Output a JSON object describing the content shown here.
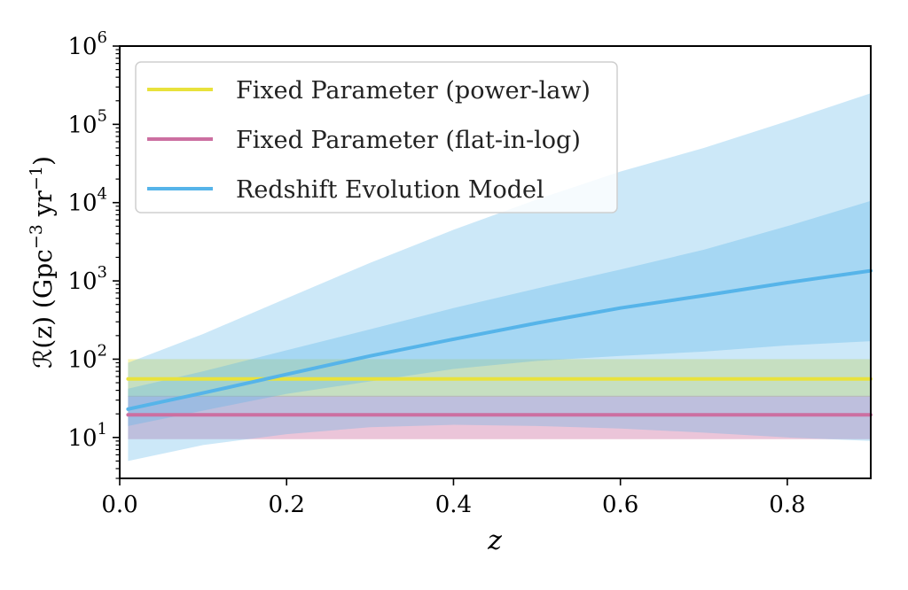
{
  "chart_data": {
    "type": "line",
    "xlabel": "z",
    "ylabel": {
      "main": "ℛ(z) (Gpc",
      "exp1": "−3",
      "mid": " yr",
      "exp2": "−1",
      "end": ")"
    },
    "xlim": [
      0.0,
      0.9
    ],
    "ylim": [
      3,
      1000000
    ],
    "yscale": "log",
    "x_ticks": [
      {
        "value": 0.0,
        "label": "0.0"
      },
      {
        "value": 0.2,
        "label": "0.2"
      },
      {
        "value": 0.4,
        "label": "0.4"
      },
      {
        "value": 0.6,
        "label": "0.6"
      },
      {
        "value": 0.8,
        "label": "0.8"
      }
    ],
    "y_ticks": [
      {
        "value": 10,
        "base": "10",
        "exp": "1"
      },
      {
        "value": 100,
        "base": "10",
        "exp": "2"
      },
      {
        "value": 1000,
        "base": "10",
        "exp": "3"
      },
      {
        "value": 10000,
        "base": "10",
        "exp": "4"
      },
      {
        "value": 100000,
        "base": "10",
        "exp": "5"
      },
      {
        "value": 1000000,
        "base": "10",
        "exp": "6"
      }
    ],
    "grid": false,
    "legend_position": "top-left",
    "series": [
      {
        "name": "Fixed Parameter (power-law)",
        "color": "#e8e23c",
        "x": [
          0.01,
          0.9
        ],
        "median": [
          56,
          56
        ],
        "band_outer": {
          "lower": [
            33,
            33
          ],
          "upper": [
            100,
            100
          ]
        },
        "band_inner": null
      },
      {
        "name": "Fixed Parameter (flat-in-log)",
        "color": "#cc6fa1",
        "x": [
          0.01,
          0.9
        ],
        "median": [
          19.5,
          19.5
        ],
        "band_outer": {
          "lower": [
            9.5,
            9.5
          ],
          "upper": [
            34,
            34
          ]
        },
        "band_inner": null
      },
      {
        "name": "Redshift Evolution Model",
        "color": "#56b4e9",
        "x": [
          0.01,
          0.1,
          0.2,
          0.3,
          0.4,
          0.5,
          0.6,
          0.7,
          0.8,
          0.9
        ],
        "median": [
          23,
          37,
          64,
          110,
          180,
          290,
          450,
          650,
          950,
          1350
        ],
        "band_inner": {
          "lower": [
            14,
            22,
            36,
            52,
            75,
            95,
            110,
            125,
            150,
            170
          ],
          "upper": [
            42,
            70,
            130,
            240,
            450,
            800,
            1400,
            2500,
            5000,
            10500
          ]
        },
        "band_outer": {
          "lower": [
            5,
            8,
            11,
            13.5,
            14.5,
            14,
            13,
            11.5,
            10,
            9
          ],
          "upper": [
            90,
            210,
            600,
            1700,
            4500,
            11000,
            25000,
            50000,
            110000,
            250000
          ]
        }
      }
    ]
  }
}
